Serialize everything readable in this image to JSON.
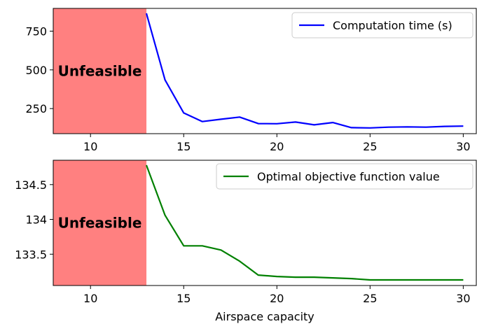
{
  "chart_data": [
    {
      "type": "line",
      "xlabel": "",
      "ylabel": "",
      "xlim": [
        8,
        30.7
      ],
      "ylim": [
        88,
        897
      ],
      "xticks": [
        10,
        15,
        20,
        25,
        30
      ],
      "yticks": [
        250,
        500,
        750
      ],
      "legend_position": "top-right",
      "shaded_region": {
        "x_from": 8,
        "x_to": 13,
        "label": "Unfeasible",
        "color": "#ff8080"
      },
      "series": [
        {
          "name": "Computation time (s)",
          "color": "#0000ff",
          "x": [
            13,
            14,
            15,
            16,
            17,
            18,
            19,
            20,
            21,
            22,
            23,
            24,
            25,
            26,
            27,
            28,
            29,
            30
          ],
          "y": [
            865,
            435,
            222,
            166,
            181,
            195,
            153,
            152,
            163,
            145,
            160,
            127,
            125,
            130,
            132,
            130,
            135,
            137
          ]
        }
      ]
    },
    {
      "type": "line",
      "xlabel": "Airspace capacity",
      "ylabel": "",
      "xlim": [
        8,
        30.7
      ],
      "ylim": [
        133.05,
        134.85
      ],
      "xticks": [
        10,
        15,
        20,
        25,
        30
      ],
      "yticks": [
        133.5,
        134.0,
        134.5
      ],
      "legend_position": "top-right",
      "shaded_region": {
        "x_from": 8,
        "x_to": 13,
        "label": "Unfeasible",
        "color": "#ff8080"
      },
      "series": [
        {
          "name": "Optimal objective function value",
          "color": "#008000",
          "x": [
            13,
            14,
            15,
            16,
            17,
            18,
            19,
            20,
            21,
            22,
            23,
            24,
            25,
            26,
            27,
            28,
            29,
            30
          ],
          "y": [
            134.78,
            134.06,
            133.62,
            133.62,
            133.56,
            133.4,
            133.2,
            133.18,
            133.17,
            133.17,
            133.16,
            133.15,
            133.13,
            133.13,
            133.13,
            133.13,
            133.13,
            133.13
          ]
        }
      ]
    }
  ]
}
